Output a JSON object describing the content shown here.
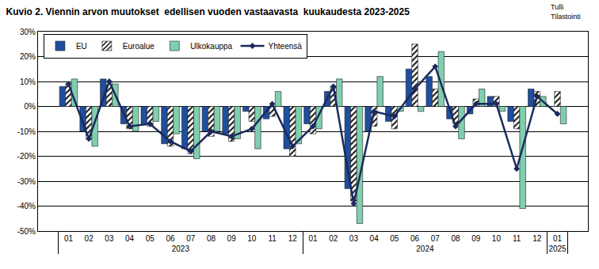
{
  "chart_data": {
    "type": "bar",
    "title": "Kuvio 2. Viennin arvon muutokset  edellisen vuoden vastaavasta  kuukaudesta 2023-2025",
    "annotation": "Tulli\nTilastointi",
    "categories": [
      "01",
      "02",
      "03",
      "04",
      "05",
      "06",
      "07",
      "08",
      "09",
      "10",
      "11",
      "12",
      "01",
      "02",
      "03",
      "04",
      "05",
      "06",
      "07",
      "08",
      "09",
      "10",
      "11",
      "12",
      "01"
    ],
    "category_groups": [
      {
        "label": "2023",
        "span": 12
      },
      {
        "label": "2024",
        "span": 12
      },
      {
        "label": "2025",
        "span": 1
      }
    ],
    "series": [
      {
        "name": "EU",
        "type": "bar",
        "color": "#1f4e9f",
        "values": [
          8,
          -10,
          11,
          -7,
          -7,
          -15,
          -17,
          -10,
          -11,
          -2,
          -5,
          -17,
          -7,
          6,
          -33,
          -10,
          -6,
          15,
          12,
          -5,
          -3,
          4,
          -6,
          7,
          0
        ]
      },
      {
        "name": "Euroalue",
        "type": "bar",
        "color": "#ffffff",
        "marker": "hatch",
        "values": [
          9,
          -13,
          10,
          -9,
          -8,
          -16,
          -19,
          -12,
          -14,
          -6,
          -4,
          -20,
          -11,
          8,
          -38,
          -8,
          -9,
          25,
          7,
          -7,
          3,
          4,
          -9,
          6,
          6
        ]
      },
      {
        "name": "Ulkokauppa",
        "type": "bar",
        "color": "#7fcfae",
        "values": [
          11,
          -16,
          9,
          -10,
          -6,
          -11,
          -21,
          -10,
          -13,
          -17,
          6,
          -15,
          -9,
          11,
          -47,
          12,
          -2,
          -2,
          22,
          -13,
          7,
          -2,
          -41,
          4,
          -7
        ]
      },
      {
        "name": "Yhteensä",
        "type": "line",
        "color": "#1b2a5c",
        "marker": "diamond",
        "values": [
          9,
          -13,
          10,
          -8,
          -7,
          -14,
          -18,
          -10,
          -12,
          -9,
          1,
          -16,
          -8,
          8,
          -39,
          -2,
          -4,
          7,
          16,
          -8,
          1,
          1,
          -25,
          4,
          -3
        ]
      }
    ],
    "ylim": [
      -50,
      30
    ],
    "yticks": [
      {
        "value": -50,
        "label": "-50%"
      },
      {
        "value": -40,
        "label": "-40%"
      },
      {
        "value": -30,
        "label": "-30%"
      },
      {
        "value": -20,
        "label": "-20%"
      },
      {
        "value": -10,
        "label": "-10%"
      },
      {
        "value": 0,
        "label": "0%"
      },
      {
        "value": 10,
        "label": "10%"
      },
      {
        "value": 20,
        "label": "20%"
      },
      {
        "value": 30,
        "label": "30%"
      }
    ],
    "grid": true,
    "legend": "top-left"
  }
}
